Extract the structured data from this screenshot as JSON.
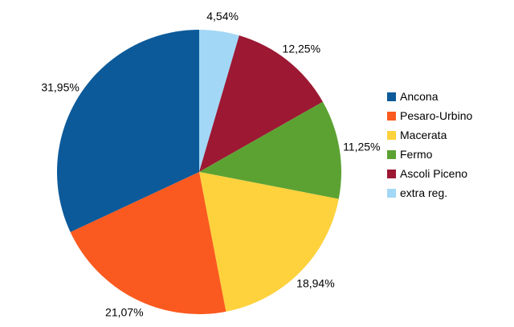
{
  "chart_data": {
    "type": "pie",
    "title": "",
    "unit": "%",
    "decimal_separator": ",",
    "legend_position": "right",
    "rotation": "clockwise-from-12-oclock",
    "background_color": "#FFFFFF",
    "label_color": "#000000",
    "categories": [
      "Ancona",
      "Pesaro-Urbino",
      "Macerata",
      "Fermo",
      "Ascoli Piceno",
      "extra reg."
    ],
    "values": [
      31.95,
      21.07,
      18.94,
      11.25,
      12.25,
      4.54
    ],
    "value_labels": [
      "31,95%",
      "21,07%",
      "18,94%",
      "11,25%",
      "12,25%",
      "4,54%"
    ],
    "slices": [
      {
        "label": "extra reg.",
        "value": 4.54,
        "display": "4,54%",
        "color": "#A3D7F6"
      },
      {
        "label": "Ascoli Piceno",
        "value": 12.25,
        "display": "12,25%",
        "color": "#9C1833"
      },
      {
        "label": "Fermo",
        "value": 11.25,
        "display": "11,25%",
        "color": "#5CA233"
      },
      {
        "label": "Macerata",
        "value": 18.94,
        "display": "18,94%",
        "color": "#FDD23D"
      },
      {
        "label": "Pesaro-Urbino",
        "value": 21.07,
        "display": "21,07%",
        "color": "#FA5A1F"
      },
      {
        "label": "Ancona",
        "value": 31.95,
        "display": "31,95%",
        "color": "#0C5A9A"
      }
    ],
    "legend": [
      {
        "label": "Ancona",
        "color": "#0C5A9A"
      },
      {
        "label": "Pesaro-Urbino",
        "color": "#FA5A1F"
      },
      {
        "label": "Macerata",
        "color": "#FDD23D"
      },
      {
        "label": "Fermo",
        "color": "#5CA233"
      },
      {
        "label": "Ascoli Piceno",
        "color": "#9C1833"
      },
      {
        "label": "extra reg.",
        "color": "#A3D7F6"
      }
    ]
  }
}
